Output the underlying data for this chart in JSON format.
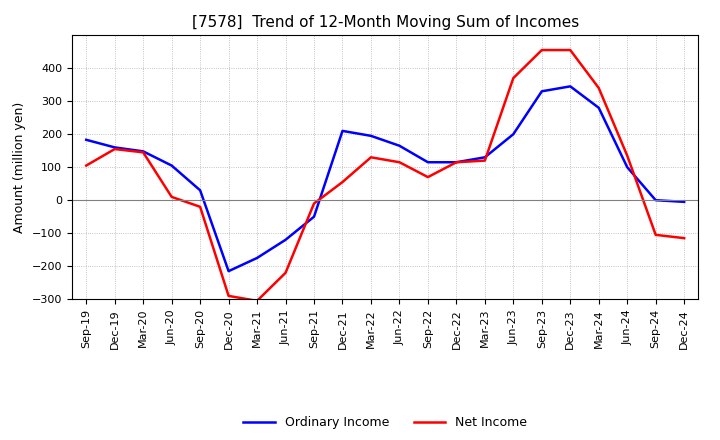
{
  "title": "[7578]  Trend of 12-Month Moving Sum of Incomes",
  "ylabel": "Amount (million yen)",
  "background_color": "#ffffff",
  "grid_color": "#b0b0b0",
  "xlabels": [
    "Sep-19",
    "Dec-19",
    "Mar-20",
    "Jun-20",
    "Sep-20",
    "Dec-20",
    "Mar-21",
    "Jun-21",
    "Sep-21",
    "Dec-21",
    "Mar-22",
    "Jun-22",
    "Sep-22",
    "Dec-22",
    "Mar-23",
    "Jun-23",
    "Sep-23",
    "Dec-23",
    "Mar-24",
    "Jun-24",
    "Sep-24",
    "Dec-24"
  ],
  "ordinary_income": [
    183,
    160,
    148,
    105,
    30,
    -215,
    -175,
    -120,
    -50,
    210,
    195,
    165,
    115,
    115,
    130,
    200,
    330,
    345,
    280,
    100,
    0,
    -5
  ],
  "net_income": [
    105,
    155,
    145,
    10,
    -20,
    -290,
    -305,
    -220,
    -10,
    55,
    130,
    115,
    70,
    115,
    120,
    370,
    455,
    455,
    340,
    135,
    -105,
    -115
  ],
  "ylim": [
    -300,
    500
  ],
  "yticks": [
    -300,
    -200,
    -100,
    0,
    100,
    200,
    300,
    400
  ],
  "line_color_ordinary": "#0000ff",
  "line_color_net": "#ff0000",
  "line_width": 1.8,
  "title_fontsize": 11,
  "label_fontsize": 9,
  "tick_fontsize": 8
}
